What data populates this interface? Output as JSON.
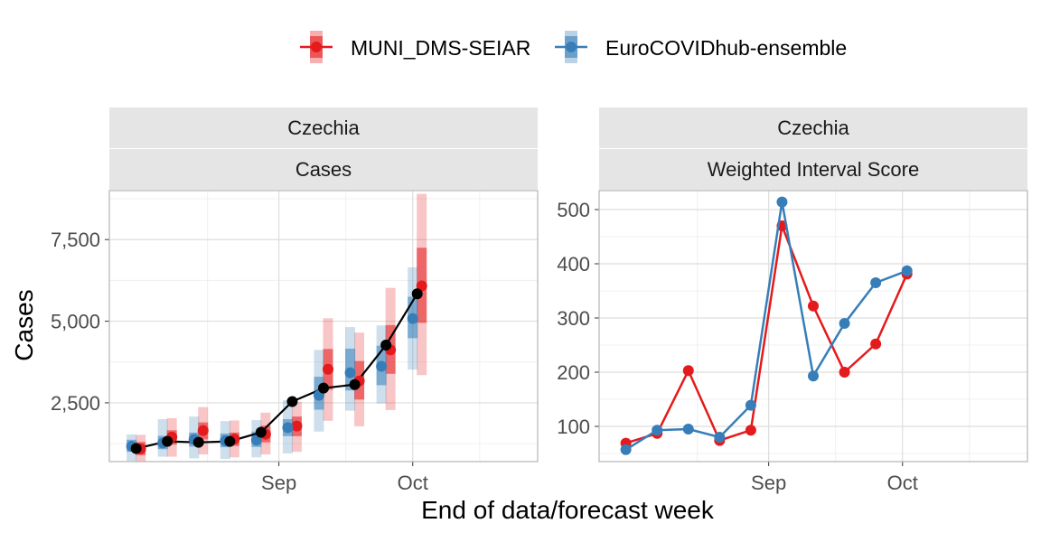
{
  "legend": {
    "items": [
      {
        "name": "MUNI_DMS-SEIAR",
        "color": "#e41a1c"
      },
      {
        "name": "EuroCOVIDhub-ensemble",
        "color": "#377eb8"
      }
    ]
  },
  "axis": {
    "xlabel": "End of data/forecast week",
    "ylabel": "Cases"
  },
  "chart_data": [
    {
      "type": "line",
      "facet": [
        "Czechia",
        "Cases"
      ],
      "x_ticks": [
        {
          "date": "2021-09-01",
          "label": "Sep"
        },
        {
          "date": "2021-10-01",
          "label": "Oct"
        }
      ],
      "xlim": [
        "2021-07-25",
        "2021-10-29"
      ],
      "y_ticks": [
        {
          "value": 2500,
          "label": "2,500"
        },
        {
          "value": 5000,
          "label": "5,000"
        },
        {
          "value": 7500,
          "label": "7,500"
        }
      ],
      "ylim": [
        700,
        9000
      ],
      "truth": {
        "dates": [
          "2021-07-31",
          "2021-08-07",
          "2021-08-14",
          "2021-08-21",
          "2021-08-28",
          "2021-09-04",
          "2021-09-11",
          "2021-09-18",
          "2021-09-25",
          "2021-10-02",
          "2021-10-09"
        ],
        "values": [
          1100,
          1320,
          1290,
          1320,
          1600,
          2540,
          2950,
          3060,
          4270,
          5840,
          5840
        ]
      },
      "truth_line_end": "2021-10-09",
      "series": [
        {
          "name": "MUNI_DMS-SEIAR",
          "dates": [
            "2021-07-31",
            "2021-08-07",
            "2021-08-14",
            "2021-08-21",
            "2021-08-28",
            "2021-09-04",
            "2021-09-11",
            "2021-09-18",
            "2021-09-25",
            "2021-10-02",
            "2021-10-09"
          ],
          "median": [
            1090,
            1450,
            1650,
            1390,
            1540,
            1790,
            3530,
            3170,
            4120,
            6080,
            6080
          ],
          "q25": [
            900,
            1220,
            1380,
            1180,
            1290,
            1480,
            2900,
            2600,
            3390,
            4950,
            4950
          ],
          "q75": [
            1300,
            1660,
            1900,
            1590,
            1800,
            2080,
            4150,
            3780,
            4880,
            7250,
            7250
          ],
          "q05": [
            700,
            850,
            920,
            830,
            920,
            1000,
            1950,
            1780,
            2280,
            3350,
            3350
          ],
          "q95": [
            1520,
            2030,
            2370,
            1960,
            2200,
            2530,
            5090,
            4650,
            6020,
            8900,
            8900
          ]
        },
        {
          "name": "EuroCOVIDhub-ensemble",
          "dates": [
            "2021-07-31",
            "2021-08-07",
            "2021-08-14",
            "2021-08-21",
            "2021-08-28",
            "2021-09-04",
            "2021-09-11",
            "2021-09-18",
            "2021-09-25",
            "2021-10-02",
            "2021-10-09"
          ],
          "median": [
            1170,
            1270,
            1380,
            1340,
            1360,
            1740,
            2730,
            3420,
            3620,
            5080,
            5080
          ],
          "q25": [
            1000,
            1080,
            1160,
            1140,
            1150,
            1480,
            2290,
            2880,
            3040,
            4480,
            4480
          ],
          "q75": [
            1370,
            1490,
            1590,
            1560,
            1620,
            2000,
            3300,
            4160,
            4250,
            5750,
            5750
          ],
          "q05": [
            720,
            850,
            800,
            780,
            830,
            950,
            1620,
            2260,
            2480,
            3520,
            3520
          ],
          "q95": [
            1530,
            2000,
            2080,
            1940,
            1970,
            2580,
            4120,
            4820,
            4870,
            6650,
            6650
          ]
        }
      ],
      "plot_dates": [
        "2021-07-31",
        "2021-08-07",
        "2021-08-14",
        "2021-08-21",
        "2021-08-28",
        "2021-09-04",
        "2021-09-11",
        "2021-09-18",
        "2021-09-25",
        "2021-10-02"
      ]
    },
    {
      "type": "line",
      "facet": [
        "Czechia",
        "Weighted Interval Score"
      ],
      "x_ticks": [
        {
          "date": "2021-09-01",
          "label": "Sep"
        },
        {
          "date": "2021-10-01",
          "label": "Oct"
        }
      ],
      "xlim": [
        "2021-07-25",
        "2021-10-29"
      ],
      "y_ticks": [
        {
          "value": 100,
          "label": "100"
        },
        {
          "value": 200,
          "label": "200"
        },
        {
          "value": 300,
          "label": "300"
        },
        {
          "value": 400,
          "label": "400"
        },
        {
          "value": 500,
          "label": "500"
        }
      ],
      "ylim": [
        35,
        535
      ],
      "series": [
        {
          "name": "MUNI_DMS-SEIAR",
          "dates": [
            "2021-07-31",
            "2021-08-07",
            "2021-08-14",
            "2021-08-21",
            "2021-08-28",
            "2021-09-04",
            "2021-09-11",
            "2021-09-18",
            "2021-09-25",
            "2021-10-02",
            "2021-10-09"
          ],
          "values": [
            69,
            87,
            203,
            74,
            93,
            470,
            322,
            200,
            252,
            381,
            381
          ]
        },
        {
          "name": "EuroCOVIDhub-ensemble",
          "dates": [
            "2021-07-31",
            "2021-08-07",
            "2021-08-14",
            "2021-08-21",
            "2021-08-28",
            "2021-09-04",
            "2021-09-11",
            "2021-09-18",
            "2021-09-25",
            "2021-10-02",
            "2021-10-09"
          ],
          "values": [
            57,
            93,
            95,
            80,
            139,
            514,
            193,
            290,
            365,
            387,
            387
          ]
        }
      ],
      "plot_dates": [
        "2021-07-31",
        "2021-08-07",
        "2021-08-14",
        "2021-08-21",
        "2021-08-28",
        "2021-09-04",
        "2021-09-11",
        "2021-09-18",
        "2021-09-25",
        "2021-10-02"
      ]
    }
  ]
}
